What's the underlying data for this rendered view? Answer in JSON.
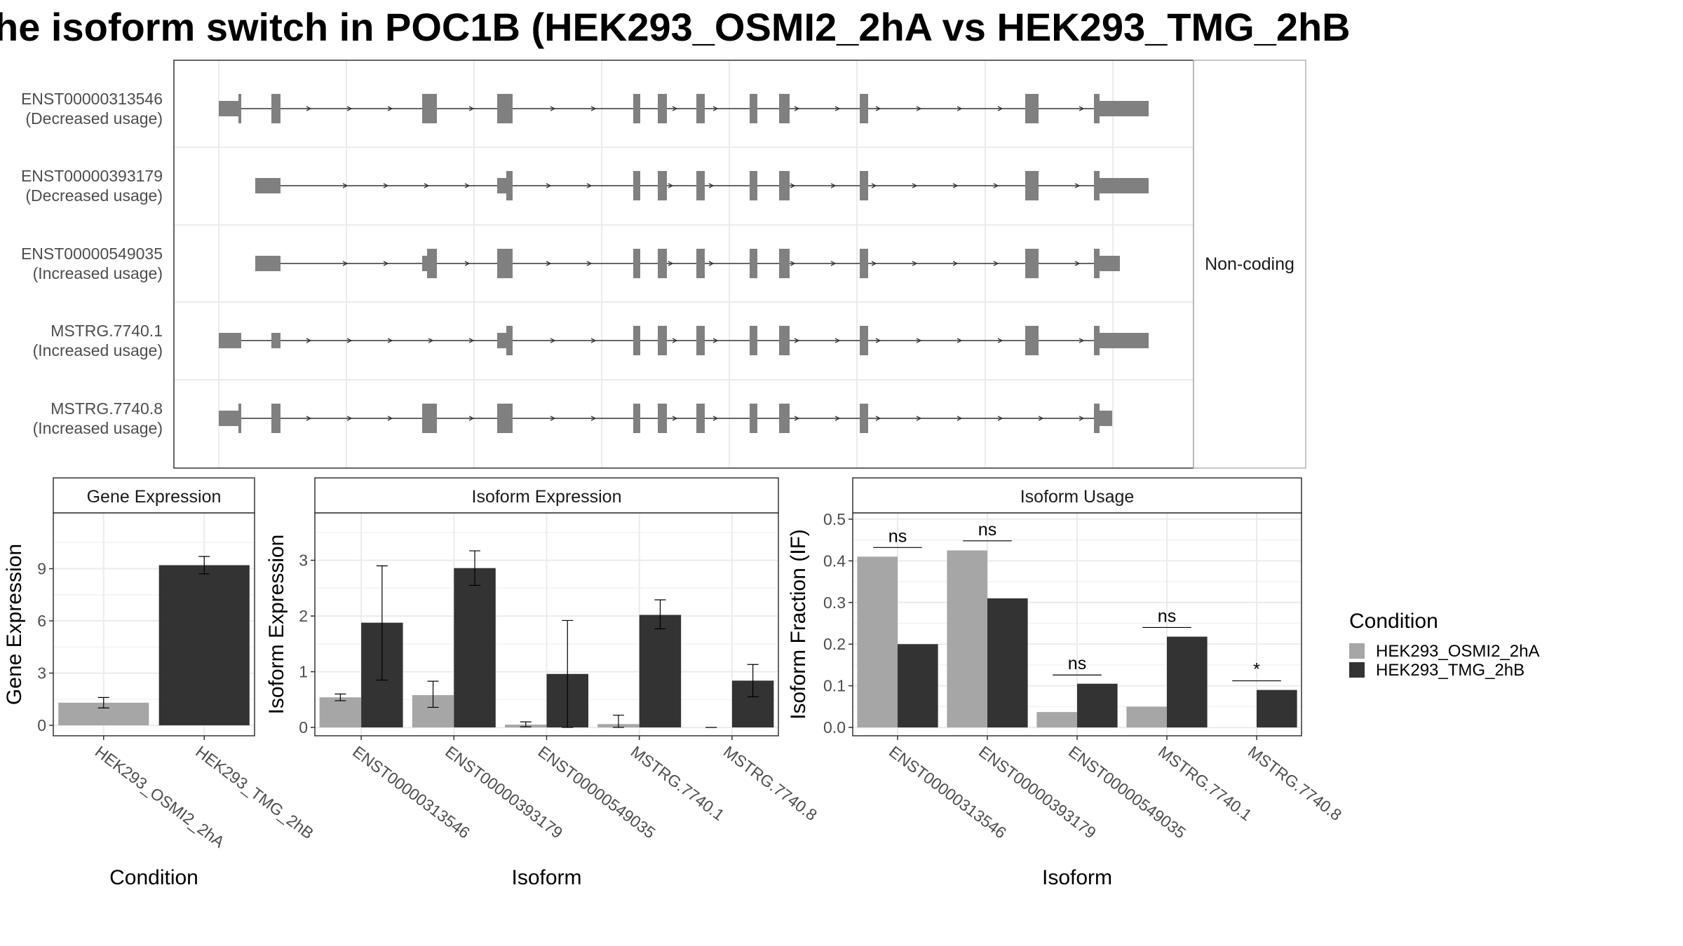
{
  "title": "he isoform switch in POC1B (HEK293_OSMI2_2hA vs HEK293_TMG_2hB",
  "colors": {
    "cond1": "#a6a6a6",
    "cond2": "#333333",
    "exon": "#808080"
  },
  "transcript_panel": {
    "facet_label": "Non-coding",
    "isoforms": [
      {
        "id": "ENST00000313546",
        "usage": "(Decreased usage)"
      },
      {
        "id": "ENST00000393179",
        "usage": "(Decreased usage)"
      },
      {
        "id": "ENST00000549035",
        "usage": "(Increased usage)"
      },
      {
        "id": "MSTRG.7740.1",
        "usage": "(Increased usage)"
      },
      {
        "id": "MSTRG.7740.8",
        "usage": "(Increased usage)"
      }
    ]
  },
  "chart_data": [
    {
      "type": "bar",
      "strip": "Gene Expression",
      "xlabel": "Condition",
      "ylabel": "Gene Expression",
      "categories": [
        "HEK293_OSMI2_2hA",
        "HEK293_TMG_2hB"
      ],
      "ylim": [
        -0.6,
        12.2
      ],
      "yticks": [
        "0",
        "3",
        "6",
        "9"
      ],
      "values": [
        1.3,
        9.2
      ],
      "err_low": [
        1.0,
        8.7
      ],
      "err_high": [
        1.6,
        9.7
      ]
    },
    {
      "type": "bar",
      "strip": "Isoform Expression",
      "xlabel": "Isoform",
      "ylabel": "Isoform Expression",
      "categories": [
        "ENST00000313546",
        "ENST00000393179",
        "ENST00000549035",
        "MSTRG.7740.1",
        "MSTRG.7740.8"
      ],
      "ylim": [
        -0.15,
        3.85
      ],
      "yticks": [
        "0",
        "1",
        "2",
        "3"
      ],
      "series": [
        {
          "name": "HEK293_OSMI2_2hA",
          "values": [
            0.54,
            0.58,
            0.05,
            0.06,
            0.0
          ],
          "err_low": [
            0.48,
            0.36,
            0.01,
            0.0,
            0.0
          ],
          "err_high": [
            0.6,
            0.83,
            0.1,
            0.22,
            0.0
          ]
        },
        {
          "name": "HEK293_TMG_2hB",
          "values": [
            1.88,
            2.86,
            0.96,
            2.02,
            0.84
          ],
          "err_low": [
            0.85,
            2.55,
            0.0,
            1.77,
            0.55
          ],
          "err_high": [
            2.9,
            3.17,
            1.92,
            2.29,
            1.13
          ]
        }
      ]
    },
    {
      "type": "bar",
      "strip": "Isoform Usage",
      "xlabel": "Isoform",
      "ylabel": "Isoform Fraction (IF)",
      "categories": [
        "ENST00000313546",
        "ENST00000393179",
        "ENST00000549035",
        "MSTRG.7740.1",
        "MSTRG.7740.8"
      ],
      "ylim": [
        -0.02,
        0.515
      ],
      "yticks": [
        "0.0",
        "0.1",
        "0.2",
        "0.3",
        "0.4",
        "0.5"
      ],
      "series": [
        {
          "name": "HEK293_OSMI2_2hA",
          "values": [
            0.41,
            0.425,
            0.037,
            0.05,
            0.0
          ]
        },
        {
          "name": "HEK293_TMG_2hB",
          "values": [
            0.2,
            0.31,
            0.105,
            0.218,
            0.09
          ]
        }
      ],
      "significance": [
        {
          "label": "ns",
          "y": 0.432
        },
        {
          "label": "ns",
          "y": 0.448
        },
        {
          "label": "ns",
          "y": 0.126
        },
        {
          "label": "ns",
          "y": 0.24
        },
        {
          "label": "*",
          "y": 0.112
        }
      ]
    }
  ],
  "legend": {
    "title": "Condition",
    "entries": [
      "HEK293_OSMI2_2hA",
      "HEK293_TMG_2hB"
    ]
  }
}
